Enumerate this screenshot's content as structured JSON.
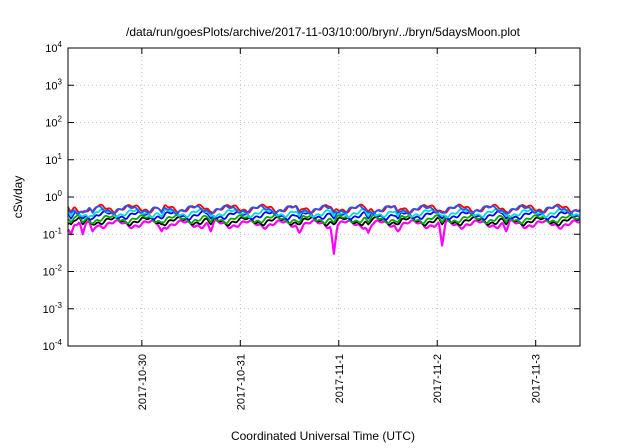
{
  "chart_data": {
    "type": "line",
    "title": "/data/run/goesPlots/archive/2017-11-03/10:00/bryn/../bryn/5daysMoon.plot",
    "xlabel": "Coordinated Universal Time (UTC)",
    "ylabel": "cSv/day",
    "yscale": "log",
    "ylim": [
      0.0001,
      10000
    ],
    "xlim": [
      -0.75,
      4.45
    ],
    "grid": true,
    "y_ticks": [
      {
        "value": 0.0001,
        "base": "10",
        "exp": "-4"
      },
      {
        "value": 0.001,
        "base": "10",
        "exp": "-3"
      },
      {
        "value": 0.01,
        "base": "10",
        "exp": "-2"
      },
      {
        "value": 0.1,
        "base": "10",
        "exp": "-1"
      },
      {
        "value": 1,
        "base": "10",
        "exp": "0"
      },
      {
        "value": 10,
        "base": "10",
        "exp": "1"
      },
      {
        "value": 100,
        "base": "10",
        "exp": "2"
      },
      {
        "value": 1000,
        "base": "10",
        "exp": "3"
      },
      {
        "value": 10000,
        "base": "10",
        "exp": "4"
      }
    ],
    "x_ticks": [
      {
        "value": 0,
        "label": "2017-10-30"
      },
      {
        "value": 1,
        "label": "2017-10-31"
      },
      {
        "value": 2,
        "label": "2017-11-1"
      },
      {
        "value": 3,
        "label": "2017-11-2"
      },
      {
        "value": 4,
        "label": "2017-11-3"
      }
    ],
    "series": [
      {
        "color": "#ff00ff",
        "base": 0.19,
        "dips": [
          {
            "x": -0.72,
            "y": 0.1
          },
          {
            "x": -0.6,
            "y": 0.1
          },
          {
            "x": -0.5,
            "y": 0.12
          },
          {
            "x": 0.2,
            "y": 0.12
          },
          {
            "x": 0.7,
            "y": 0.12
          },
          {
            "x": 1.6,
            "y": 0.11
          },
          {
            "x": 1.95,
            "y": 0.03
          },
          {
            "x": 2.3,
            "y": 0.11
          },
          {
            "x": 2.6,
            "y": 0.12
          },
          {
            "x": 3.05,
            "y": 0.05
          },
          {
            "x": 3.7,
            "y": 0.12
          }
        ]
      },
      {
        "color": "#000000",
        "base": 0.23,
        "dips": []
      },
      {
        "color": "#00aa00",
        "base": 0.26,
        "dips": []
      },
      {
        "color": "#0000ff",
        "base": 0.33,
        "dips": []
      },
      {
        "color": "#00dddd",
        "base": 0.38,
        "dips": []
      },
      {
        "color": "#ff0000",
        "base": 0.5,
        "dips": []
      },
      {
        "color": "#2255ff",
        "base": 0.47,
        "dips": []
      }
    ]
  }
}
